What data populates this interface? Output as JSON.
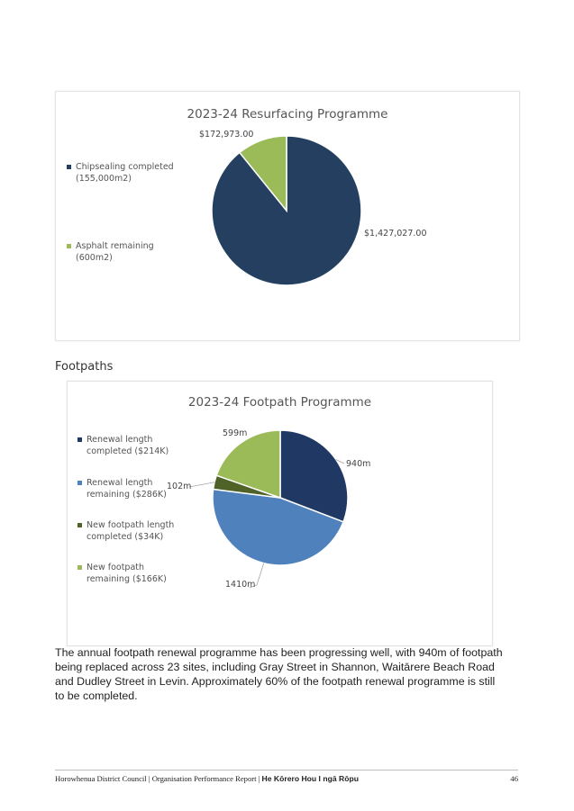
{
  "charts": {
    "chart_data": [
      {
        "type": "pie",
        "title": "2023-24 Resurfacing Programme",
        "categories": [
          "Chipsealing completed (155,000m2)",
          "Asphalt remaining (600m2)"
        ],
        "legend_lines": [
          [
            "Chipsealing completed",
            "(155,000m2)"
          ],
          [
            "Asphalt remaining",
            "(600m2)"
          ]
        ],
        "values": [
          1427027,
          172973
        ],
        "data_labels": [
          "$1,427,027.00",
          "$172,973.00"
        ],
        "colors": [
          "#243f60",
          "#9bbb59"
        ],
        "legend_position": "left"
      },
      {
        "type": "pie",
        "title": "2023-24 Footpath Programme",
        "categories": [
          "Renewal length completed ($214K)",
          "Renewal length remaining ($286K)",
          "New footpath length completed ($34K)",
          "New footpath remaining ($166K)"
        ],
        "legend_lines": [
          [
            "Renewal length",
            "completed ($214K)"
          ],
          [
            "Renewal length",
            "remaining ($286K)"
          ],
          [
            "New footpath length",
            "completed ($34K)"
          ],
          [
            "New footpath",
            "remaining ($166K)"
          ]
        ],
        "values": [
          940,
          1410,
          102,
          599
        ],
        "data_labels": [
          "940m",
          "1410m",
          "102m",
          "599m"
        ],
        "colors": [
          "#1f3864",
          "#4f81bd",
          "#4f6228",
          "#9bbb59"
        ],
        "legend_position": "left"
      }
    ]
  },
  "section": {
    "heading": "Footpaths",
    "body": "The annual footpath renewal programme has been progressing well, with 940m of footpath being replaced across 23 sites, including Gray Street in Shannon, Waitārere Beach Road and Dudley Street in Levin. Approximately 60% of the footpath renewal programme is still to be completed."
  },
  "footer": {
    "text": "Horowhenua District Council | Organisation Performance Report | ",
    "bold_text": "He Kōrero Hou I ngā Rōpu",
    "page_number": "46"
  }
}
